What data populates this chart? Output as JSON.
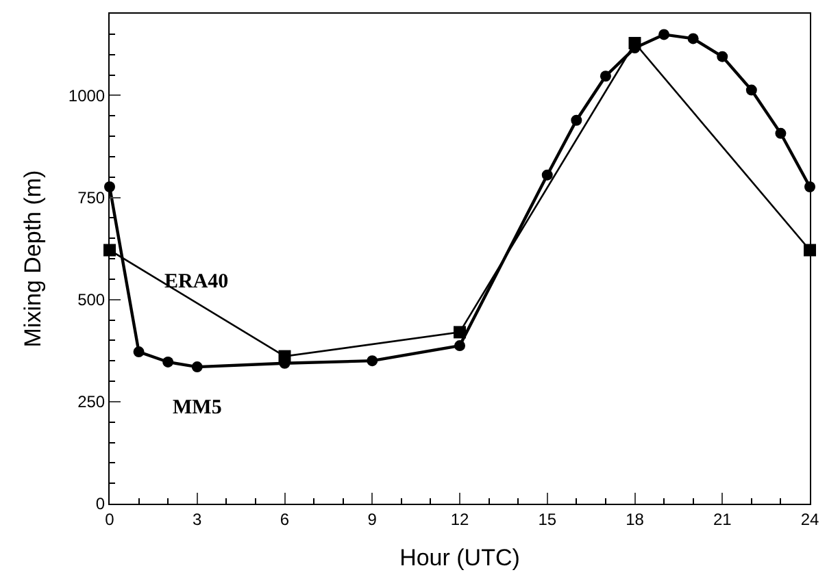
{
  "chart_data": {
    "type": "line",
    "xlabel": "Hour (UTC)",
    "ylabel": "Mixing Depth (m)",
    "xlim": [
      0,
      24
    ],
    "xticks": [
      0,
      3,
      6,
      9,
      12,
      15,
      18,
      21,
      24
    ],
    "ylim": [
      0,
      1200
    ],
    "yticks": [
      0,
      250,
      500,
      750,
      1000
    ],
    "legend": false,
    "series": [
      {
        "name": "ERA40",
        "color": "#000000",
        "marker": "square",
        "x": [
          0,
          6,
          12,
          18,
          24
        ],
        "values": [
          621,
          361,
          420,
          1128,
          621
        ]
      },
      {
        "name": "MM5",
        "color": "#000000",
        "marker": "circle",
        "x": [
          0,
          1,
          2,
          3,
          6,
          9,
          12,
          15,
          16,
          17,
          18,
          19,
          20,
          21,
          22,
          23,
          24
        ],
        "values": [
          776,
          372,
          347,
          335,
          344,
          350,
          387,
          805,
          939,
          1047,
          1116,
          1149,
          1139,
          1095,
          1013,
          907,
          776
        ]
      }
    ]
  }
}
